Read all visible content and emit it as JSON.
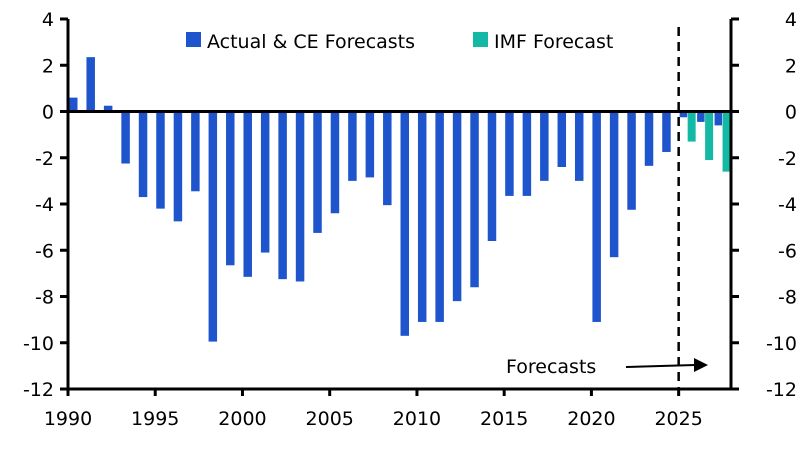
{
  "chart_data": {
    "type": "bar",
    "title": "",
    "xlabel": "",
    "ylabel": "",
    "ylim": [
      -12,
      4
    ],
    "yticks": [
      4,
      2,
      0,
      -2,
      -4,
      -6,
      -8,
      -10,
      -12
    ],
    "ytick_labels": [
      "4",
      "2",
      "0",
      "-2",
      "-4",
      "-6",
      "-8",
      "-10",
      "-12"
    ],
    "xlim": [
      1990,
      2028
    ],
    "xticks": [
      1990,
      1995,
      2000,
      2005,
      2010,
      2015,
      2020,
      2025
    ],
    "xtick_labels": [
      "1990",
      "1995",
      "2000",
      "2005",
      "2010",
      "2015",
      "2020",
      "2025"
    ],
    "grid": false,
    "legend_position": "top-center",
    "categories": [
      1990,
      1991,
      1992,
      1993,
      1994,
      1995,
      1996,
      1997,
      1998,
      1999,
      2000,
      2001,
      2002,
      2003,
      2004,
      2005,
      2006,
      2007,
      2008,
      2009,
      2010,
      2011,
      2012,
      2013,
      2014,
      2015,
      2016,
      2017,
      2018,
      2019,
      2020,
      2021,
      2022,
      2023,
      2024,
      2025,
      2026,
      2027
    ],
    "series": [
      {
        "name": "Actual & CE Forecasts",
        "color": "#1f55cc",
        "values": [
          0.6,
          2.35,
          0.25,
          -2.25,
          -3.7,
          -4.2,
          -4.75,
          -3.45,
          -9.95,
          -6.65,
          -7.15,
          -6.1,
          -7.25,
          -7.35,
          -5.25,
          -4.4,
          -3.0,
          -2.85,
          -4.05,
          -9.7,
          -9.1,
          -9.1,
          -8.2,
          -7.6,
          -5.6,
          -3.65,
          -3.65,
          -3.0,
          -2.4,
          -3.0,
          -9.1,
          -6.3,
          -4.25,
          -2.35,
          -1.75,
          -0.25,
          -0.45,
          -0.6
        ]
      },
      {
        "name": "IMF Forecast",
        "color": "#13b9a4",
        "values": [
          null,
          null,
          null,
          null,
          null,
          null,
          null,
          null,
          null,
          null,
          null,
          null,
          null,
          null,
          null,
          null,
          null,
          null,
          null,
          null,
          null,
          null,
          null,
          null,
          null,
          null,
          null,
          null,
          null,
          null,
          null,
          null,
          null,
          null,
          null,
          -1.3,
          -2.1,
          -2.6
        ]
      }
    ],
    "forecast_start": 2025,
    "annotations": [
      {
        "text": "Forecasts",
        "type": "arrow-right"
      }
    ]
  }
}
